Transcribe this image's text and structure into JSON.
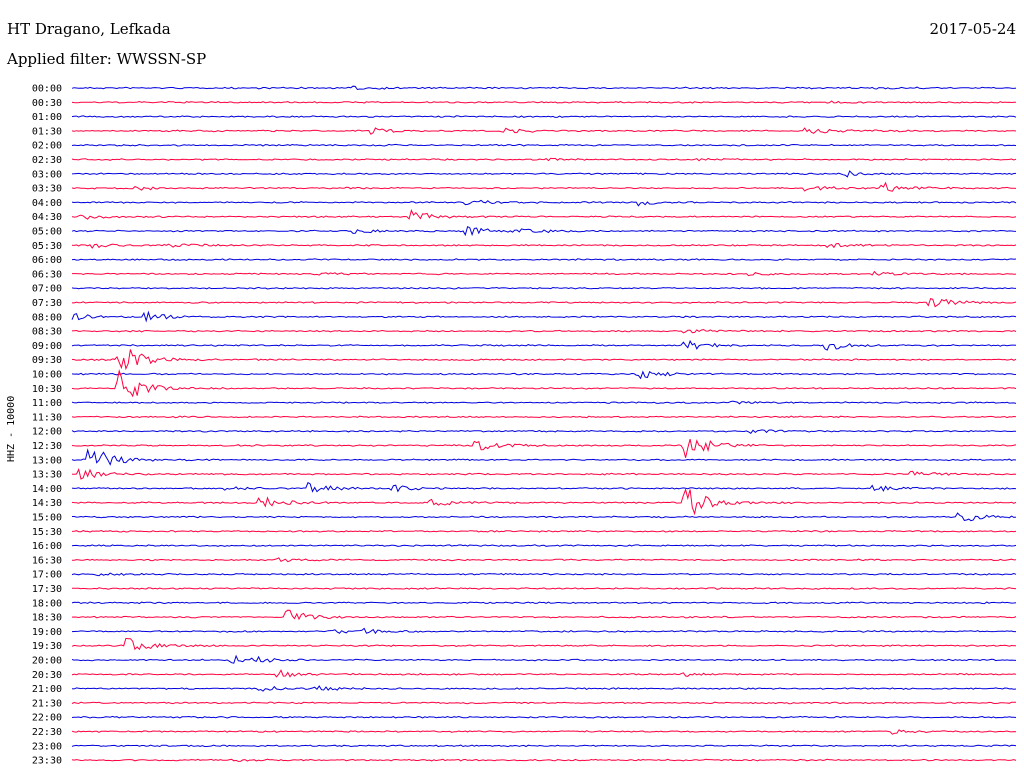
{
  "header": {
    "station": "HT Dragano, Lefkada",
    "date": "2017-05-24",
    "filter_label": "Applied filter: WWSSN-SP"
  },
  "chart_data": {
    "type": "line",
    "title": "HT Dragano, Lefkada",
    "ylabel": "HHZ - 10000",
    "colors": [
      "#0000dd",
      "#ff0040"
    ],
    "rows": [
      {
        "time": "00:00",
        "events": [
          [
            0.3,
            0.2
          ],
          [
            0.85,
            0.1
          ]
        ]
      },
      {
        "time": "00:30",
        "events": [
          [
            0.8,
            0.15
          ]
        ]
      },
      {
        "time": "01:00",
        "events": []
      },
      {
        "time": "01:30",
        "events": [
          [
            0.32,
            0.35
          ],
          [
            0.46,
            0.3
          ],
          [
            0.78,
            0.55
          ]
        ]
      },
      {
        "time": "02:00",
        "events": []
      },
      {
        "time": "02:30",
        "events": [
          [
            0.5,
            0.12
          ],
          [
            0.66,
            0.12
          ]
        ]
      },
      {
        "time": "03:00",
        "events": [
          [
            0.82,
            0.4
          ]
        ]
      },
      {
        "time": "03:30",
        "events": [
          [
            0.07,
            0.3
          ],
          [
            0.78,
            0.35
          ],
          [
            0.86,
            0.8
          ]
        ]
      },
      {
        "time": "04:00",
        "events": [
          [
            0.42,
            0.45
          ],
          [
            0.6,
            0.45
          ]
        ]
      },
      {
        "time": "04:30",
        "events": [
          [
            0.01,
            0.4
          ],
          [
            0.36,
            0.8
          ]
        ]
      },
      {
        "time": "05:00",
        "events": [
          [
            0.3,
            0.3
          ],
          [
            0.42,
            0.55
          ],
          [
            0.48,
            0.35
          ]
        ]
      },
      {
        "time": "05:30",
        "events": [
          [
            0.02,
            0.3
          ],
          [
            0.1,
            0.35
          ],
          [
            0.8,
            0.35
          ]
        ]
      },
      {
        "time": "06:00",
        "events": []
      },
      {
        "time": "06:30",
        "events": [
          [
            0.26,
            0.15
          ],
          [
            0.72,
            0.2
          ],
          [
            0.85,
            0.3
          ]
        ]
      },
      {
        "time": "07:00",
        "events": []
      },
      {
        "time": "07:30",
        "events": [
          [
            0.91,
            0.7
          ]
        ]
      },
      {
        "time": "08:00",
        "events": [
          [
            0.0,
            0.45
          ],
          [
            0.08,
            0.6
          ]
        ]
      },
      {
        "time": "08:30",
        "events": [
          [
            0.65,
            0.35
          ]
        ]
      },
      {
        "time": "09:00",
        "events": [
          [
            0.65,
            0.85
          ],
          [
            0.8,
            0.75
          ]
        ]
      },
      {
        "time": "09:30",
        "events": [
          [
            0.05,
            2.5
          ]
        ]
      },
      {
        "time": "10:00",
        "events": [
          [
            0.6,
            0.8
          ]
        ]
      },
      {
        "time": "10:30",
        "events": [
          [
            0.05,
            2.5
          ]
        ]
      },
      {
        "time": "11:00",
        "events": [
          [
            0.7,
            0.2
          ]
        ]
      },
      {
        "time": "11:30",
        "events": []
      },
      {
        "time": "12:00",
        "events": [
          [
            0.72,
            0.3
          ]
        ]
      },
      {
        "time": "12:30",
        "events": [
          [
            0.43,
            0.8
          ],
          [
            0.65,
            2.0
          ]
        ]
      },
      {
        "time": "13:00",
        "events": [
          [
            0.02,
            2.2
          ]
        ]
      },
      {
        "time": "13:30",
        "events": [
          [
            0.01,
            0.8
          ],
          [
            0.89,
            0.4
          ]
        ]
      },
      {
        "time": "14:00",
        "events": [
          [
            0.16,
            0.45
          ],
          [
            0.25,
            0.8
          ],
          [
            0.34,
            0.45
          ],
          [
            0.85,
            0.4
          ]
        ]
      },
      {
        "time": "14:30",
        "events": [
          [
            0.2,
            0.9
          ],
          [
            0.38,
            0.5
          ],
          [
            0.65,
            2.5
          ]
        ]
      },
      {
        "time": "15:00",
        "events": [
          [
            0.94,
            0.9
          ]
        ]
      },
      {
        "time": "15:30",
        "events": []
      },
      {
        "time": "16:00",
        "events": []
      },
      {
        "time": "16:30",
        "events": [
          [
            0.22,
            0.25
          ]
        ]
      },
      {
        "time": "17:00",
        "events": [
          [
            0.03,
            0.2
          ]
        ]
      },
      {
        "time": "17:30",
        "events": []
      },
      {
        "time": "18:00",
        "events": []
      },
      {
        "time": "18:30",
        "events": [
          [
            0.23,
            1.0
          ]
        ]
      },
      {
        "time": "19:00",
        "events": [
          [
            0.28,
            0.3
          ],
          [
            0.31,
            0.3
          ]
        ]
      },
      {
        "time": "19:30",
        "events": [
          [
            0.06,
            1.0
          ]
        ]
      },
      {
        "time": "20:00",
        "events": [
          [
            0.17,
            0.6
          ],
          [
            0.19,
            0.35
          ]
        ]
      },
      {
        "time": "20:30",
        "events": [
          [
            0.22,
            0.5
          ],
          [
            0.65,
            0.25
          ]
        ]
      },
      {
        "time": "21:00",
        "events": [
          [
            0.2,
            0.4
          ],
          [
            0.25,
            0.5
          ]
        ]
      },
      {
        "time": "21:30",
        "events": []
      },
      {
        "time": "22:00",
        "events": []
      },
      {
        "time": "22:30",
        "events": [
          [
            0.87,
            0.3
          ]
        ]
      },
      {
        "time": "23:00",
        "events": []
      },
      {
        "time": "23:30",
        "events": [
          [
            0.17,
            0.2
          ]
        ]
      }
    ]
  }
}
